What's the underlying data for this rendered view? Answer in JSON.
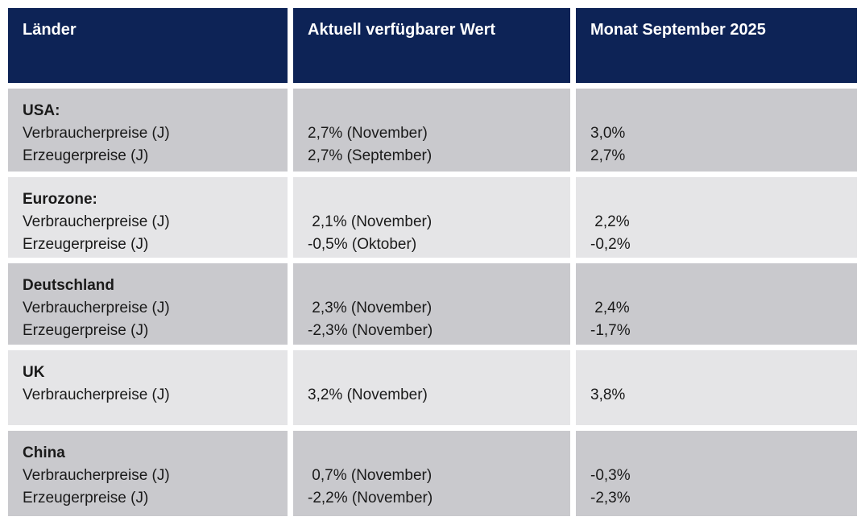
{
  "table": {
    "headers": [
      "Länder",
      "Aktuell verfügbarer Wert",
      "Monat September 2025"
    ],
    "rows": [
      {
        "country": "USA:",
        "metrics": [
          "Verbraucherpreise (J)",
          "Erzeugerpreise (J)"
        ],
        "current": [
          "2,7% (November)",
          "2,7% (September)"
        ],
        "september": [
          "3,0%",
          "2,7%"
        ]
      },
      {
        "country": "Eurozone:",
        "metrics": [
          "Verbraucherpreise (J)",
          "Erzeugerpreise (J)"
        ],
        "current": [
          " 2,1% (November)",
          "-0,5% (Oktober)"
        ],
        "september": [
          " 2,2%",
          "-0,2%"
        ]
      },
      {
        "country": "Deutschland",
        "metrics": [
          "Verbraucherpreise (J)",
          "Erzeugerpreise (J)"
        ],
        "current": [
          " 2,3% (November)",
          "-2,3% (November)"
        ],
        "september": [
          " 2,4%",
          "-1,7%"
        ]
      },
      {
        "country": "UK",
        "metrics": [
          "Verbraucherpreise (J)"
        ],
        "current": [
          "3,2% (November)"
        ],
        "september": [
          "3,8%"
        ]
      },
      {
        "country": "China",
        "metrics": [
          "Verbraucherpreise (J)",
          "Erzeugerpreise (J)"
        ],
        "current": [
          " 0,7% (November)",
          "-2,2% (November)"
        ],
        "september": [
          "-0,3%",
          "-2,3%"
        ]
      }
    ]
  },
  "chart_data": {
    "type": "table",
    "title": "",
    "columns": [
      "Länder",
      "Aktuell verfügbarer Wert",
      "Monat September 2025"
    ],
    "rows": [
      [
        "USA: Verbraucherpreise (J)",
        "2,7% (November)",
        "3,0%"
      ],
      [
        "USA: Erzeugerpreise (J)",
        "2,7% (September)",
        "2,7%"
      ],
      [
        "Eurozone: Verbraucherpreise (J)",
        "2,1% (November)",
        "2,2%"
      ],
      [
        "Eurozone: Erzeugerpreise (J)",
        "-0,5% (Oktober)",
        "-0,2%"
      ],
      [
        "Deutschland Verbraucherpreise (J)",
        "2,3% (November)",
        "2,4%"
      ],
      [
        "Deutschland Erzeugerpreise (J)",
        "-2,3% (November)",
        "-1,7%"
      ],
      [
        "UK Verbraucherpreise (J)",
        "3,2% (November)",
        "3,8%"
      ],
      [
        "China Verbraucherpreise (J)",
        "0,7% (November)",
        "-0,3%"
      ],
      [
        "China Erzeugerpreise (J)",
        "-2,2% (November)",
        "-2,3%"
      ]
    ]
  },
  "colors": {
    "header_bg": "#0d2356",
    "header_text": "#ffffff",
    "row_dark": "#c9c9cd",
    "row_light": "#e5e5e7",
    "text": "#1a1a1a",
    "background": "#ffffff"
  }
}
